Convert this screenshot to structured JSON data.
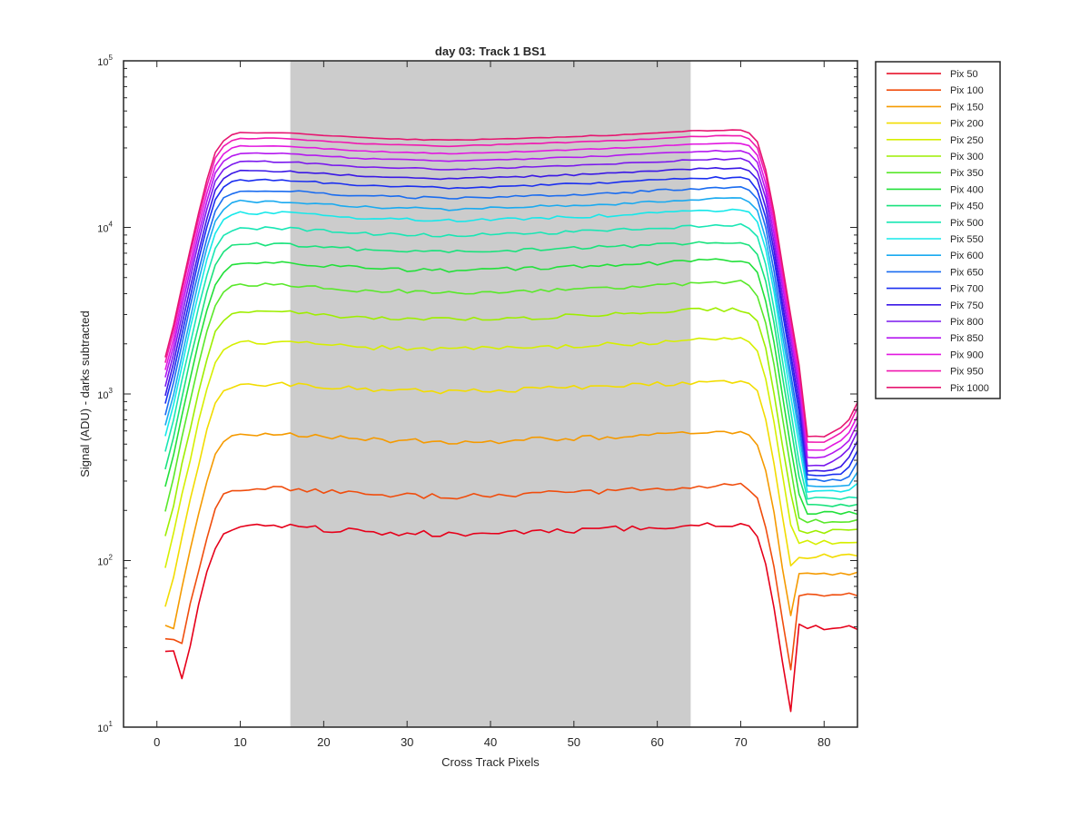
{
  "chart_data": {
    "type": "line",
    "title": "day 03: Track 1  BS1",
    "xlabel": "Cross Track Pixels",
    "ylabel": "Signal (ADU) - darks subtracted",
    "xlim": [
      -4,
      84
    ],
    "ylim": [
      10,
      100000
    ],
    "yscale": "log",
    "x_ticks": [
      0,
      10,
      20,
      30,
      40,
      50,
      60,
      70,
      80
    ],
    "y_ticks": [
      {
        "base": "10",
        "exp": "1"
      },
      {
        "base": "10",
        "exp": "2"
      },
      {
        "base": "10",
        "exp": "3"
      },
      {
        "base": "10",
        "exp": "4"
      },
      {
        "base": "10",
        "exp": "5"
      }
    ],
    "shaded_region": {
      "x": [
        16,
        64
      ],
      "color": "#cccccc"
    },
    "grid": false,
    "legend_position": "outside-right",
    "x_range": [
      1,
      84
    ],
    "profile_breakpoints": {
      "x": [
        1,
        2,
        3,
        4,
        5,
        6,
        7,
        8,
        9,
        10,
        15,
        25,
        35,
        45,
        55,
        65,
        70,
        71,
        72,
        73,
        74,
        75,
        76,
        77,
        78,
        79,
        80,
        81,
        82,
        83,
        84
      ],
      "shape": [
        0.045,
        0.07,
        0.12,
        0.2,
        0.33,
        0.52,
        0.76,
        0.9,
        0.97,
        1.0,
        1.0,
        0.93,
        0.9,
        0.93,
        0.97,
        1.03,
        1.04,
        1.0,
        0.88,
        0.6,
        0.33,
        0.16,
        0.08,
        0.04,
        0.015,
        0.015,
        0.015,
        0.016,
        0.017,
        0.019,
        0.024
      ]
    },
    "series": [
      {
        "name": "Pix 50",
        "plateau": 160,
        "color": "#e6001a"
      },
      {
        "name": "Pix 100",
        "plateau": 270,
        "color": "#f04d0d"
      },
      {
        "name": "Pix 150",
        "plateau": 570,
        "color": "#f59a00"
      },
      {
        "name": "Pix 200",
        "plateau": 1150,
        "color": "#f2dc00"
      },
      {
        "name": "Pix 250",
        "plateau": 2050,
        "color": "#d6ef00"
      },
      {
        "name": "Pix 300",
        "plateau": 3100,
        "color": "#9eee00"
      },
      {
        "name": "Pix 350",
        "plateau": 4500,
        "color": "#59e82a"
      },
      {
        "name": "Pix 400",
        "plateau": 6100,
        "color": "#22e03a"
      },
      {
        "name": "Pix 450",
        "plateau": 7900,
        "color": "#19e27c"
      },
      {
        "name": "Pix 500",
        "plateau": 9900,
        "color": "#19e6b4"
      },
      {
        "name": "Pix 550",
        "plateau": 12200,
        "color": "#16e8ea"
      },
      {
        "name": "Pix 600",
        "plateau": 14300,
        "color": "#19aaf0"
      },
      {
        "name": "Pix 650",
        "plateau": 16600,
        "color": "#1a6cf0"
      },
      {
        "name": "Pix 700",
        "plateau": 19200,
        "color": "#1a2ef0"
      },
      {
        "name": "Pix 750",
        "plateau": 21800,
        "color": "#3a18e6"
      },
      {
        "name": "Pix 800",
        "plateau": 24800,
        "color": "#7a18ee"
      },
      {
        "name": "Pix 850",
        "plateau": 27800,
        "color": "#b418f0"
      },
      {
        "name": "Pix 900",
        "plateau": 30800,
        "color": "#e218e0"
      },
      {
        "name": "Pix 950",
        "plateau": 34200,
        "color": "#f018b0"
      },
      {
        "name": "Pix 1000",
        "plateau": 37000,
        "color": "#e61670"
      }
    ]
  }
}
